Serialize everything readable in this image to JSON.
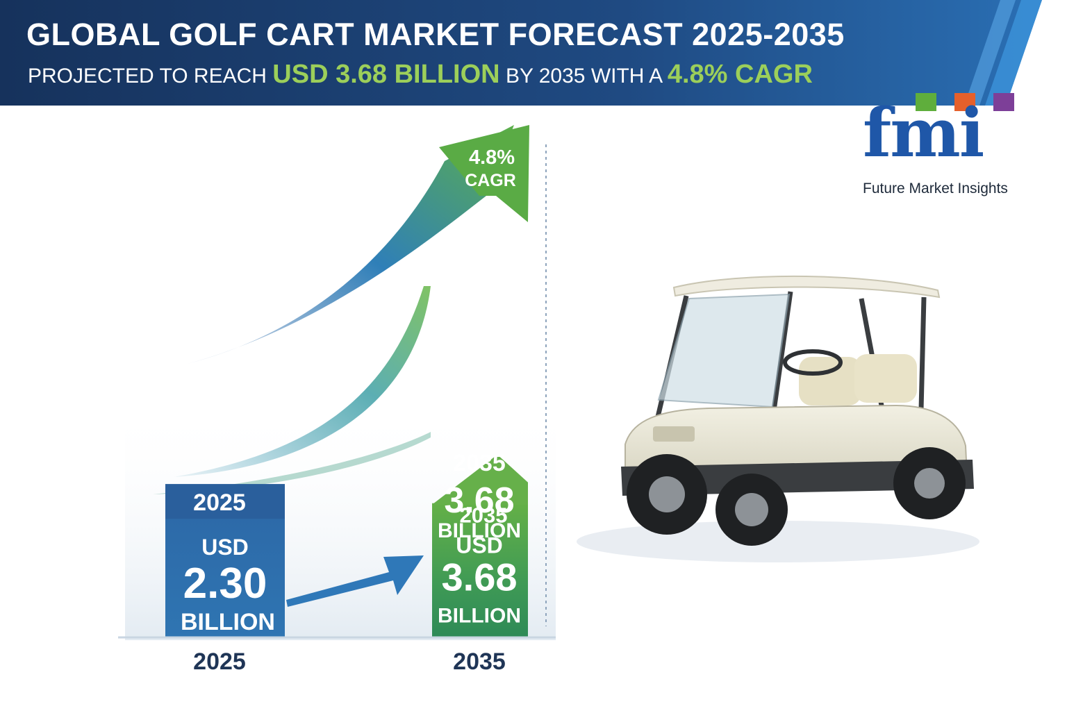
{
  "header": {
    "title": "GLOBAL GOLF CART MARKET FORECAST 2025-2035",
    "subtitle_prefix": "PROJECTED TO REACH",
    "subtitle_value": "USD 3.68 BILLION",
    "subtitle_middle": "BY 2035 WITH A",
    "subtitle_cagr": "4.8% CAGR"
  },
  "logo": {
    "wordmark": "fmi",
    "company": "Future Market Insights"
  },
  "chart_data": {
    "type": "bar",
    "categories": [
      "2025",
      "2035"
    ],
    "values": [
      2.3,
      3.68
    ],
    "unit": "USD Billion",
    "bar_labels": [
      {
        "year": "2025",
        "currency": "USD",
        "amount": "2.30",
        "unit": "BILLION"
      },
      {
        "year": "2035",
        "currency": "USD",
        "amount": "3.68",
        "unit": "BILLION"
      }
    ],
    "secondary_label": {
      "year": "2035",
      "amount": "3.68",
      "unit": "BILLION"
    },
    "cagr_label": {
      "value": "4.8%",
      "text": "CAGR"
    },
    "colors": {
      "bar_2025": "#2f6ea8",
      "bar_2035": "#4aa84e",
      "axis_label": "#1f3556"
    }
  },
  "colors": {
    "banner_dark": "#1b3d6e",
    "banner_light": "#2f7fc4",
    "highlight_green": "#9ccf5a",
    "logo_blue": "#1f57a8"
  }
}
